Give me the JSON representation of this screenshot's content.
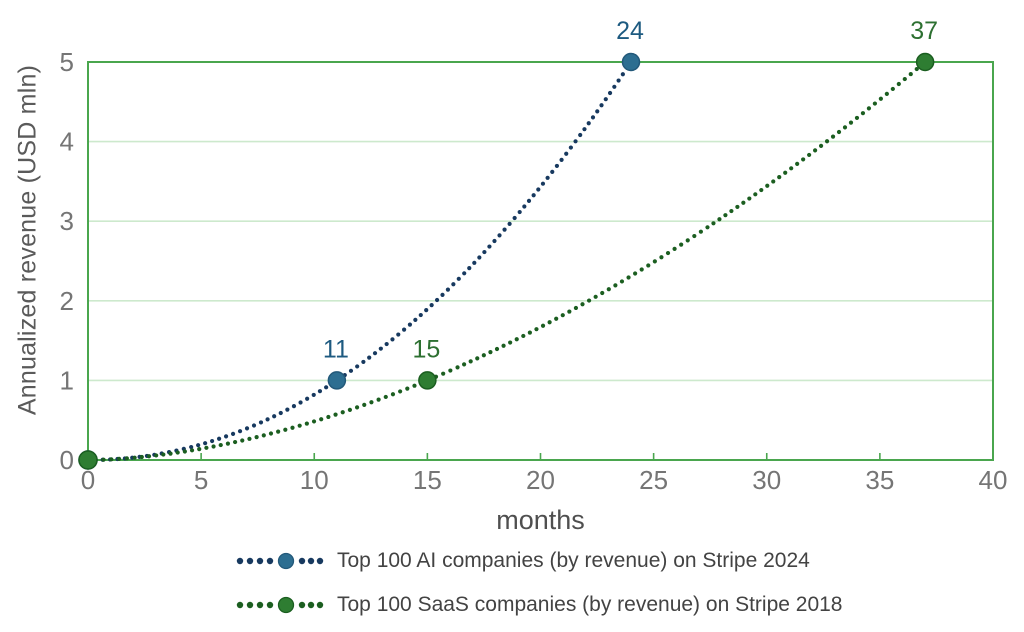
{
  "chart_data": {
    "type": "line",
    "title": "",
    "xlabel": "months",
    "ylabel": "Annualized revenue (USD mln)",
    "xlim": [
      0,
      40
    ],
    "ylim": [
      0,
      5
    ],
    "x_ticks": [
      0,
      5,
      10,
      15,
      20,
      25,
      30,
      35,
      40
    ],
    "y_ticks": [
      0,
      1,
      2,
      3,
      4,
      5
    ],
    "grid": "horizontal",
    "legend_position": "bottom",
    "line_style": "dotted",
    "series": [
      {
        "name": "Top 100 AI companies (by revenue) on Stripe 2024",
        "points": [
          [
            0,
            0
          ],
          [
            11,
            1
          ],
          [
            24,
            5
          ]
        ],
        "point_labels": [
          "",
          "11",
          "24"
        ],
        "dot_color": "#17395f",
        "marker_color": "#2d6e91",
        "marker_stroke": "#23597a",
        "label_color": "#1d5a80"
      },
      {
        "name": "Top 100 SaaS companies (by revenue) on Stripe 2018",
        "points": [
          [
            0,
            0
          ],
          [
            15,
            1
          ],
          [
            37,
            5
          ]
        ],
        "point_labels": [
          "",
          "15",
          "37"
        ],
        "dot_color": "#1b5e20",
        "marker_color": "#2e7d32",
        "marker_stroke": "#1b5e20",
        "label_color": "#2d7031"
      }
    ],
    "colors": {
      "axis": "#4aa64e",
      "grid": "#cde9cd",
      "tick_label": "#757575",
      "axis_title": "#5a5a5a",
      "legend_text": "#434343"
    }
  }
}
